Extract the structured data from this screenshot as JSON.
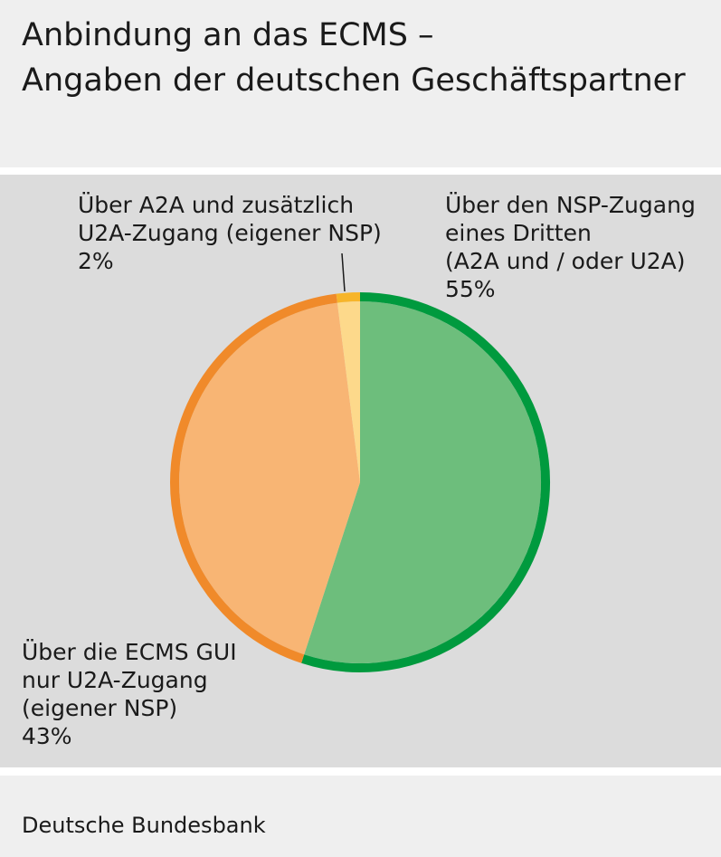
{
  "chart_data": {
    "type": "pie",
    "title": [
      "Anbindung an das ECMS –",
      "Angaben der deutschen Geschäftspartner"
    ],
    "categories": [
      [
        "Über den NSP-Zugang",
        "eines Dritten",
        "(A2A und / oder U2A)"
      ],
      [
        "Über die ECMS GUI",
        "nur U2A-Zugang",
        "(eigener NSP)"
      ],
      [
        "Über A2A und zusätzlich",
        "U2A-Zugang (eigener NSP)"
      ]
    ],
    "values": [
      55,
      43,
      2
    ],
    "value_labels": [
      "55%",
      "43%",
      "2%"
    ],
    "colors": [
      "#6dbe7c",
      "#f8b574",
      "#fdd98b"
    ],
    "edge_colors": [
      "#009a3e",
      "#f08a2a",
      "#f7b52a"
    ],
    "source": "Deutsche Bundesbank"
  }
}
